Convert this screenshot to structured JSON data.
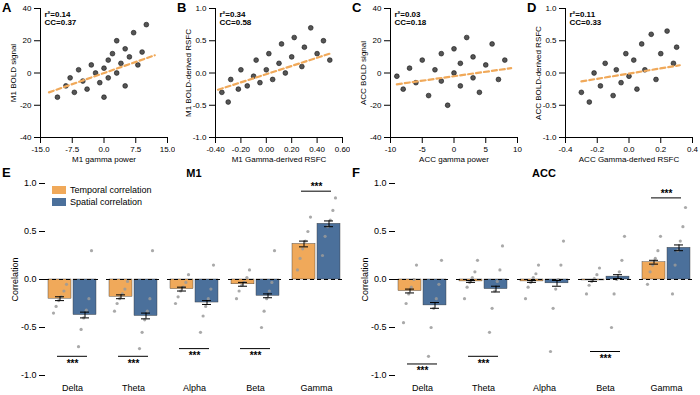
{
  "chart_data": [
    {
      "panel": "A",
      "type": "scatter",
      "x_label": "M1 gamma power",
      "y_label": "M1 BOLD signal",
      "xlim": [
        -15,
        15
      ],
      "xticks": [
        {
          "value": -15,
          "label": "-15.0"
        },
        {
          "value": -7.5,
          "label": "-7.5"
        },
        {
          "value": 0,
          "label": "0.0"
        },
        {
          "value": 7.5,
          "label": "7.5"
        },
        {
          "value": 15,
          "label": "15.0"
        }
      ],
      "ylim": [
        -40,
        40
      ],
      "yticks": [
        -40,
        -20,
        0,
        20,
        40
      ],
      "annotations": [
        "r²=0.14",
        "CC=0.37"
      ],
      "series": [
        {
          "type": "scatter",
          "marker": "circle",
          "color": "#555555",
          "x": [
            -11,
            -9,
            -8,
            -7,
            -6,
            -5,
            -4,
            -3,
            -2,
            -1,
            0,
            0,
            1,
            1,
            2,
            3,
            3,
            4,
            5,
            5,
            6,
            7,
            8,
            9,
            10
          ],
          "y": [
            -15,
            -8,
            -3,
            -12,
            2,
            -5,
            -10,
            5,
            0,
            -6,
            3,
            -15,
            8,
            -3,
            12,
            0,
            20,
            6,
            -8,
            15,
            10,
            25,
            5,
            13,
            30
          ]
        },
        {
          "type": "line",
          "line_style": "dashed",
          "color": "#F0A95A",
          "x": [
            -13,
            12
          ],
          "y": [
            -12,
            11
          ]
        }
      ]
    },
    {
      "panel": "B",
      "type": "scatter",
      "x_label": "M1 Gamma-derived RSFC",
      "y_label": "M1 BOLD-derived RSFC",
      "xlim": [
        -0.4,
        0.6
      ],
      "xticks": [
        {
          "value": -0.4,
          "label": "-0.40"
        },
        {
          "value": -0.2,
          "label": "-0.20"
        },
        {
          "value": 0,
          "label": "0.00"
        },
        {
          "value": 0.2,
          "label": "0.20"
        },
        {
          "value": 0.4,
          "label": "0.40"
        },
        {
          "value": 0.6,
          "label": "0.60"
        }
      ],
      "ylim": [
        -1,
        1
      ],
      "yticks": [
        {
          "value": -1,
          "label": "-1.0"
        },
        {
          "value": -0.5,
          "label": "-0.5"
        },
        {
          "value": 0,
          "label": "0.0"
        },
        {
          "value": 0.5,
          "label": "0.5"
        },
        {
          "value": 1,
          "label": "1.0"
        }
      ],
      "annotations": [
        "r²=0.34",
        "CC=0.58"
      ],
      "series": [
        {
          "type": "scatter",
          "marker": "circle",
          "color": "#555555",
          "x": [
            -0.35,
            -0.3,
            -0.28,
            -0.22,
            -0.2,
            -0.15,
            -0.1,
            -0.08,
            -0.05,
            0,
            0.02,
            0.05,
            0.1,
            0.12,
            0.15,
            0.2,
            0.22,
            0.28,
            0.3,
            0.35,
            0.4,
            0.45,
            0.5
          ],
          "y": [
            -0.3,
            -0.45,
            -0.1,
            -0.25,
            0.05,
            -0.2,
            -0.05,
            0.2,
            -0.15,
            0.05,
            0.3,
            -0.1,
            0.15,
            0.45,
            0,
            0.25,
            0.55,
            0.1,
            0.4,
            0.7,
            0.3,
            0.5,
            0.2
          ]
        },
        {
          "type": "line",
          "line_style": "dashed",
          "color": "#F0A95A",
          "x": [
            -0.38,
            0.5
          ],
          "y": [
            -0.26,
            0.3
          ]
        }
      ]
    },
    {
      "panel": "C",
      "type": "scatter",
      "x_label": "ACC gamma power",
      "y_label": "ACC BOLD signal",
      "xlim": [
        -10,
        10
      ],
      "xticks": [
        -10,
        -5,
        0,
        5,
        10
      ],
      "ylim": [
        -40,
        40
      ],
      "yticks": [
        -40,
        -20,
        0,
        20,
        40
      ],
      "annotations": [
        "r²=0.03",
        "CC=0.18"
      ],
      "series": [
        {
          "type": "scatter",
          "marker": "circle",
          "color": "#555555",
          "x": [
            -9,
            -8,
            -7,
            -6,
            -5,
            -4,
            -3,
            -2,
            -2,
            -1,
            0,
            0,
            1,
            1,
            2,
            3,
            3,
            4,
            5,
            6,
            7,
            8
          ],
          "y": [
            -2,
            -10,
            3,
            -6,
            8,
            -14,
            2,
            -5,
            12,
            -20,
            0,
            15,
            -8,
            6,
            22,
            -3,
            10,
            -12,
            5,
            18,
            -4,
            8
          ]
        },
        {
          "type": "line",
          "line_style": "dashed",
          "color": "#F0A95A",
          "x": [
            -9,
            9
          ],
          "y": [
            -7,
            3
          ]
        }
      ]
    },
    {
      "panel": "D",
      "type": "scatter",
      "x_label": "ACC Gamma-derived RSFC",
      "y_label": "ACC BOLD-derived RSFC",
      "xlim": [
        -0.4,
        0.4
      ],
      "xticks": [
        -0.4,
        -0.2,
        {
          "value": 0,
          "label": "0.0"
        },
        0.2,
        0.4
      ],
      "ylim": [
        -1,
        1
      ],
      "yticks": [
        {
          "value": -1,
          "label": "-1.0"
        },
        {
          "value": -0.5,
          "label": "-0.5"
        },
        {
          "value": 0,
          "label": "0.0"
        },
        {
          "value": 0.5,
          "label": "0.5"
        },
        {
          "value": 1,
          "label": "1.0"
        }
      ],
      "annotations": [
        "r²=0.11",
        "CC=0.33"
      ],
      "series": [
        {
          "type": "scatter",
          "marker": "circle",
          "color": "#555555",
          "x": [
            -0.3,
            -0.25,
            -0.22,
            -0.18,
            -0.15,
            -0.1,
            -0.08,
            -0.05,
            -0.02,
            0,
            0.03,
            0.05,
            0.08,
            0.1,
            0.14,
            0.17,
            0.2,
            0.24,
            0.28,
            0.3
          ],
          "y": [
            -0.3,
            -0.45,
            0,
            -0.2,
            0.15,
            -0.35,
            0.05,
            -0.15,
            0.3,
            -0.05,
            0.2,
            -0.25,
            0.45,
            0.05,
            0.6,
            -0.1,
            0.3,
            0.65,
            0.15,
            0.4
          ]
        },
        {
          "type": "line",
          "line_style": "dashed",
          "color": "#F0A95A",
          "x": [
            -0.3,
            0.32
          ],
          "y": [
            -0.13,
            0.12
          ]
        }
      ]
    },
    {
      "panel": "E",
      "type": "bar",
      "title": "M1",
      "y_label": "Correlation",
      "categories": [
        "Delta",
        "Theta",
        "Alpha",
        "Beta",
        "Gamma"
      ],
      "ylim": [
        -1,
        1
      ],
      "yticks": [
        {
          "value": -1,
          "label": "-1.0"
        },
        {
          "value": -0.5,
          "label": "-0.5"
        },
        {
          "value": 0,
          "label": "0.0"
        },
        {
          "value": 0.5,
          "label": "0.5"
        },
        {
          "value": 1,
          "label": "1.0"
        }
      ],
      "legend": "top-left",
      "series": [
        {
          "name": "Temporal correlation",
          "color": "#F0A95A",
          "values": [
            -0.2,
            -0.18,
            -0.1,
            -0.05,
            0.37
          ],
          "errors": [
            0.02,
            0.02,
            0.02,
            0.02,
            0.03
          ],
          "points": [
            [
              -0.35,
              -0.28,
              -0.22,
              -0.18,
              -0.12,
              -0.05
            ],
            [
              -0.33,
              -0.25,
              -0.2,
              -0.15,
              -0.1,
              -0.02
            ],
            [
              -0.25,
              -0.18,
              -0.12,
              -0.08,
              -0.03,
              0.05
            ],
            [
              -0.2,
              -0.12,
              -0.06,
              -0.03,
              0.02,
              0.1
            ],
            [
              0.1,
              0.22,
              0.32,
              0.4,
              0.5,
              0.65
            ]
          ]
        },
        {
          "name": "Spatial correlation",
          "color": "#4B709B",
          "values": [
            -0.37,
            -0.38,
            -0.24,
            -0.17,
            0.58
          ],
          "errors": [
            0.03,
            0.03,
            0.02,
            0.02,
            0.03
          ],
          "points": [
            [
              -0.7,
              -0.52,
              -0.4,
              -0.32,
              -0.2,
              0.3
            ],
            [
              -0.72,
              -0.55,
              -0.42,
              -0.33,
              -0.2,
              0.3
            ],
            [
              -0.55,
              -0.38,
              -0.28,
              -0.2,
              -0.1,
              0.15
            ],
            [
              -0.5,
              -0.33,
              -0.2,
              -0.12,
              -0.03,
              0.3
            ],
            [
              0.25,
              0.45,
              0.55,
              0.62,
              0.72,
              0.85
            ]
          ]
        }
      ],
      "annotations": [
        {
          "category": "Delta",
          "text": "***",
          "y": -0.8
        },
        {
          "category": "Theta",
          "text": "***",
          "y": -0.8
        },
        {
          "category": "Alpha",
          "text": "***",
          "y": -0.72
        },
        {
          "category": "Beta",
          "text": "***",
          "y": -0.72
        },
        {
          "category": "Gamma",
          "text": "***",
          "y": 0.92
        }
      ]
    },
    {
      "panel": "F",
      "type": "bar",
      "title": "ACC",
      "y_label": "Correlation",
      "categories": [
        "Delta",
        "Theta",
        "Alpha",
        "Beta",
        "Gamma"
      ],
      "ylim": [
        -1,
        1
      ],
      "yticks": [
        {
          "value": -1,
          "label": "-1.0"
        },
        {
          "value": -0.5,
          "label": "-0.5"
        },
        {
          "value": 0,
          "label": "0.0"
        },
        {
          "value": 0.5,
          "label": "0.5"
        },
        {
          "value": 1,
          "label": "1.0"
        }
      ],
      "series": [
        {
          "name": "Temporal correlation",
          "color": "#F0A95A",
          "values": [
            -0.12,
            -0.02,
            -0.02,
            -0.01,
            0.18
          ],
          "errors": [
            0.02,
            0.01,
            0.01,
            0.01,
            0.02
          ],
          "points": [
            [
              -0.45,
              -0.25,
              -0.15,
              -0.08,
              0,
              0.15
            ],
            [
              -0.2,
              -0.08,
              -0.03,
              0.02,
              0.08,
              0.2
            ],
            [
              -0.2,
              -0.08,
              -0.03,
              0.02,
              0.06,
              0.15
            ],
            [
              -0.15,
              -0.06,
              -0.02,
              0.01,
              0.05,
              0.12
            ],
            [
              -0.05,
              0.08,
              0.15,
              0.22,
              0.3,
              0.45
            ]
          ]
        },
        {
          "name": "Spatial correlation",
          "color": "#4B709B",
          "values": [
            -0.27,
            -0.1,
            -0.04,
            0.03,
            0.33
          ],
          "errors": [
            0.03,
            0.03,
            0.03,
            0.02,
            0.03
          ],
          "points": [
            [
              -0.8,
              -0.5,
              -0.3,
              -0.2,
              -0.05,
              0.2
            ],
            [
              -0.55,
              -0.3,
              -0.12,
              -0.02,
              0.1,
              0.35
            ],
            [
              -0.75,
              -0.3,
              -0.1,
              0,
              0.15,
              0.4
            ],
            [
              -0.5,
              -0.15,
              0,
              0.08,
              0.2,
              0.45
            ],
            [
              -0.15,
              0.15,
              0.3,
              0.4,
              0.55,
              0.75
            ]
          ]
        }
      ],
      "annotations": [
        {
          "category": "Delta",
          "text": "***",
          "y": -0.88
        },
        {
          "category": "Theta",
          "text": "***",
          "y": -0.8
        },
        {
          "category": "Beta",
          "text": "***",
          "y": -0.75
        },
        {
          "category": "Gamma",
          "text": "***",
          "y": 0.85
        }
      ]
    }
  ]
}
